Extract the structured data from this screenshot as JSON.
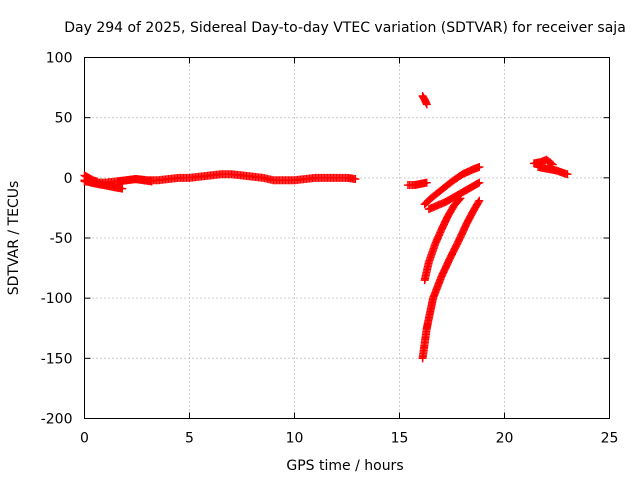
{
  "chart_data": {
    "type": "scatter",
    "title": "Day 294 of 2025, Sidereal Day-to-day VTEC variation (SDTVAR) for receiver saja",
    "xlabel": "GPS time / hours",
    "ylabel": "SDTVAR / TECUs",
    "xlim": [
      0,
      25
    ],
    "ylim": [
      -200,
      100
    ],
    "xticks": [
      0,
      5,
      10,
      15,
      20,
      25
    ],
    "yticks": [
      -200,
      -150,
      -100,
      -50,
      0,
      50,
      100
    ],
    "grid": true,
    "marker": "+",
    "series_color": "#ff0000",
    "tracks": [
      {
        "x": [
          0,
          0.5,
          1.0,
          1.5,
          2.0,
          2.5,
          3.0,
          3.5,
          4.0,
          4.5,
          5.0,
          5.5,
          6.0,
          6.5,
          7.0,
          7.5,
          8.0,
          8.5,
          9.0,
          9.5,
          10.0,
          10.5,
          11.0,
          11.5,
          12.0,
          12.5,
          12.9
        ],
        "y": [
          -3,
          -4,
          -4,
          -3,
          -2,
          -1,
          -2,
          -2,
          -1,
          0,
          0,
          1,
          2,
          3,
          3,
          2,
          1,
          0,
          -2,
          -2,
          -2,
          -1,
          0,
          0,
          0,
          0,
          -1
        ]
      },
      {
        "x": [
          0,
          0.3,
          0.6,
          0.9,
          1.2,
          1.5,
          1.8
        ],
        "y": [
          -2,
          -4,
          -5,
          -6,
          -7,
          -8,
          -9
        ]
      },
      {
        "x": [
          0,
          0.2,
          0.4,
          0.6
        ],
        "y": [
          2,
          0,
          -2,
          -3
        ]
      },
      {
        "x": [
          1.6,
          2.0,
          2.4,
          2.8,
          3.2
        ],
        "y": [
          -3,
          -2,
          -1,
          -2,
          -3
        ]
      },
      {
        "x": [
          15.4,
          15.7,
          16.0,
          16.3
        ],
        "y": [
          -6,
          -6,
          -5,
          -4
        ]
      },
      {
        "x": [
          16.1,
          16.2,
          16.3
        ],
        "y": [
          68,
          65,
          61
        ]
      },
      {
        "x": [
          16.2,
          16.5,
          17.0,
          17.5,
          18.0,
          18.5,
          18.8
        ],
        "y": [
          -22,
          -17,
          -10,
          -3,
          3,
          7,
          9
        ]
      },
      {
        "x": [
          16.4,
          16.8,
          17.2,
          17.6,
          18.0,
          18.4,
          18.8
        ],
        "y": [
          -26,
          -23,
          -20,
          -16,
          -12,
          -8,
          -4
        ]
      },
      {
        "x": [
          16.2,
          16.4,
          16.7,
          17.0,
          17.3,
          17.6,
          17.9
        ],
        "y": [
          -85,
          -70,
          -55,
          -43,
          -32,
          -23,
          -17
        ]
      },
      {
        "x": [
          16.1,
          16.3,
          16.6,
          17.0,
          17.4,
          17.8,
          18.2,
          18.5,
          18.8
        ],
        "y": [
          -150,
          -125,
          -100,
          -82,
          -67,
          -53,
          -38,
          -28,
          -19
        ]
      },
      {
        "x": [
          21.4,
          21.7,
          22.0,
          22.3
        ],
        "y": [
          12,
          13,
          15,
          11
        ]
      },
      {
        "x": [
          21.6,
          21.9,
          22.2,
          22.5,
          22.8,
          23.0
        ],
        "y": [
          9,
          8,
          7,
          6,
          4,
          3
        ]
      }
    ]
  }
}
